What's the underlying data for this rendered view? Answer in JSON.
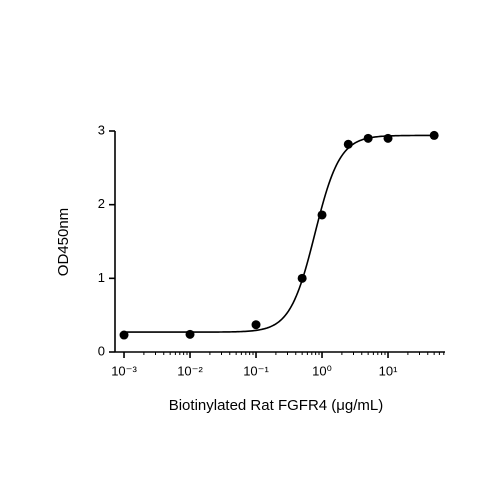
{
  "chart_data": {
    "type": "scatter",
    "x_label": "Biotinylated Rat FGFR4 (μg/mL)",
    "y_label": "OD450nm",
    "x": [
      0.001,
      0.01,
      0.1,
      0.5,
      1,
      2.5,
      5,
      10,
      50
    ],
    "values": [
      0.23,
      0.24,
      0.37,
      1.0,
      1.86,
      2.82,
      2.9,
      2.9,
      2.94
    ],
    "color": "#000000",
    "log_x": true,
    "xlim": [
      0.00073,
      73
    ],
    "ylim": [
      0,
      3
    ],
    "xticks": [
      {
        "value": 0.001,
        "label": "10⁻³"
      },
      {
        "value": 0.01,
        "label": "10⁻²"
      },
      {
        "value": 0.1,
        "label": "10⁻¹"
      },
      {
        "value": 1,
        "label": "10⁰"
      },
      {
        "value": 10,
        "label": "10¹"
      }
    ],
    "xminorticks": [
      0.002,
      0.003,
      0.004,
      0.005,
      0.006,
      0.007,
      0.008,
      0.009,
      0.02,
      0.03,
      0.04,
      0.05,
      0.06,
      0.07,
      0.08,
      0.09,
      0.2,
      0.3,
      0.4,
      0.5,
      0.6,
      0.7,
      0.8,
      0.9,
      2,
      3,
      4,
      5,
      6,
      7,
      8,
      9,
      20,
      30,
      40,
      50,
      60,
      70
    ],
    "yticks": [
      0,
      1,
      2,
      3
    ],
    "fit": {
      "model": "4PL",
      "bottom": 0.27,
      "top": 2.94,
      "ec50": 0.78,
      "hill": 2.3
    }
  }
}
